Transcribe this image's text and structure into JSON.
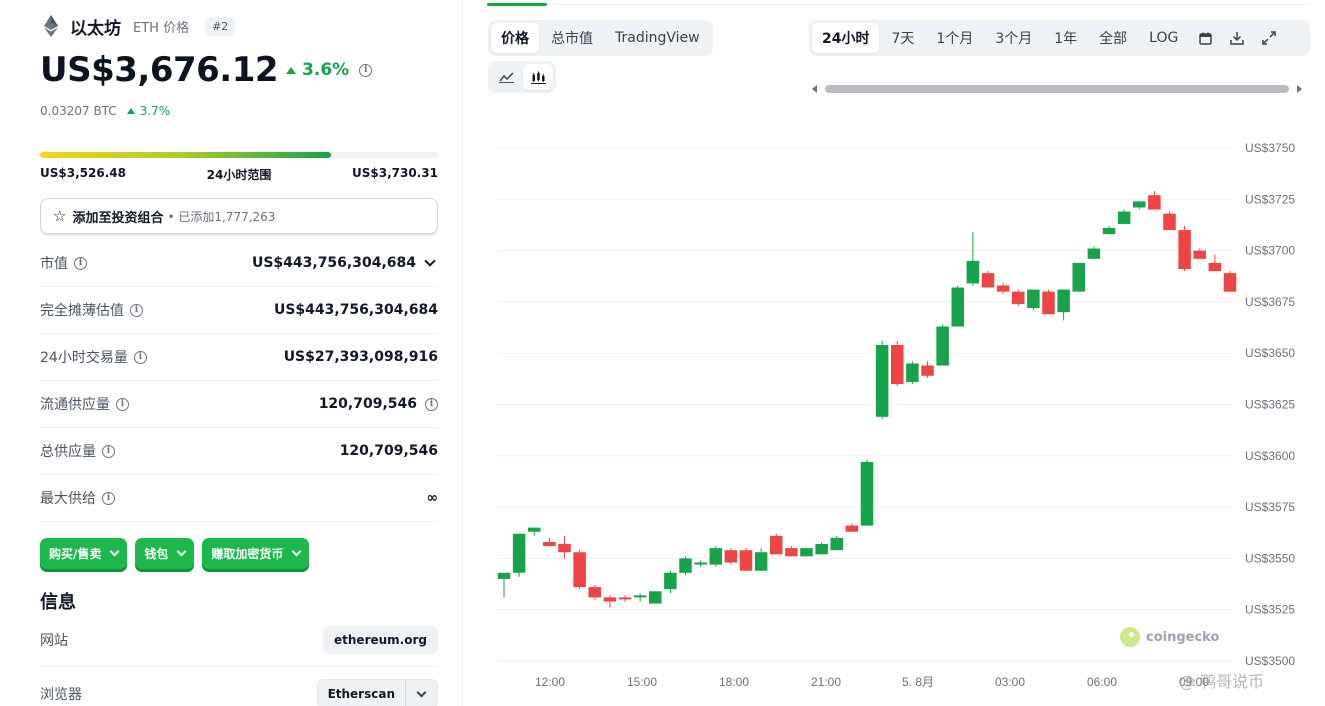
{
  "coin": {
    "name": "以太坊",
    "symbol_label": "ETH 价格",
    "rank": "#2",
    "price": "US$3,676.12",
    "change_24h": "3.6%",
    "btc_price": "0.03207 BTC",
    "btc_change": "3.7%"
  },
  "range": {
    "low": "US$3,526.48",
    "label": "24小时范围",
    "high": "US$3,730.31",
    "fill_fraction": 0.73
  },
  "portfolio": {
    "label": "添加至投资组合",
    "added": "• 已添加1,777,263"
  },
  "stats": [
    {
      "label": "市值",
      "value": "US$443,756,304,684"
    },
    {
      "label": "完全摊薄估值",
      "value": "US$443,756,304,684"
    },
    {
      "label": "24小时交易量",
      "value": "US$27,393,098,916"
    },
    {
      "label": "流通供应量",
      "value": "120,709,546"
    },
    {
      "label": "总供应量",
      "value": "120,709,546"
    },
    {
      "label": "最大供给",
      "value": "∞"
    }
  ],
  "actions": [
    "购买/售卖",
    "钱包",
    "赚取加密货币"
  ],
  "info": {
    "title": "信息",
    "website_label": "网站",
    "website_value": "ethereum.org",
    "explorer_label": "浏览器",
    "explorer_value": "Etherscan"
  },
  "chart_tabs": [
    "价格",
    "总市值",
    "TradingView"
  ],
  "chart_icons": [
    "line-chart-icon",
    "candlestick-icon"
  ],
  "time_ranges": [
    "24小时",
    "7天",
    "1个月",
    "3个月",
    "1年",
    "全部",
    "LOG"
  ],
  "tool_icons": [
    "calendar-icon",
    "download-icon",
    "expand-icon"
  ],
  "colors": {
    "up": "#16a34a",
    "down": "#ef4444",
    "accent": "#16a34a"
  },
  "watermark": {
    "brand": "coingecko",
    "overlay": "@ 鸭哥说币"
  },
  "chart_data": {
    "type": "candlestick",
    "y_ticks": [
      "US$3750",
      "US$3725",
      "US$3700",
      "US$3675",
      "US$3650",
      "US$3625",
      "US$3600",
      "US$3575",
      "US$3550",
      "US$3525",
      "US$3500"
    ],
    "ylim": [
      3500,
      3750
    ],
    "x_ticks": [
      "12:00",
      "15:00",
      "18:00",
      "21:00",
      "5. 8月",
      "03:00",
      "06:00",
      "09:00"
    ],
    "candles": [
      {
        "o": 3540,
        "h": 3542,
        "l": 3531,
        "c": 3543
      },
      {
        "o": 3543,
        "h": 3562,
        "l": 3541,
        "c": 3562
      },
      {
        "o": 3563,
        "h": 3565,
        "l": 3561,
        "c": 3565
      },
      {
        "o": 3558,
        "h": 3560,
        "l": 3556,
        "c": 3556
      },
      {
        "o": 3557,
        "h": 3561,
        "l": 3550,
        "c": 3553
      },
      {
        "o": 3553,
        "h": 3554,
        "l": 3535,
        "c": 3536
      },
      {
        "o": 3536,
        "h": 3537,
        "l": 3530,
        "c": 3531
      },
      {
        "o": 3531,
        "h": 3532,
        "l": 3526,
        "c": 3529
      },
      {
        "o": 3531,
        "h": 3532,
        "l": 3529,
        "c": 3530
      },
      {
        "o": 3531,
        "h": 3533,
        "l": 3529,
        "c": 3532
      },
      {
        "o": 3528,
        "h": 3533,
        "l": 3528,
        "c": 3534
      },
      {
        "o": 3535,
        "h": 3544,
        "l": 3533,
        "c": 3543
      },
      {
        "o": 3543,
        "h": 3551,
        "l": 3542,
        "c": 3550
      },
      {
        "o": 3547,
        "h": 3549,
        "l": 3546,
        "c": 3548
      },
      {
        "o": 3547,
        "h": 3556,
        "l": 3546,
        "c": 3555
      },
      {
        "o": 3554,
        "h": 3555,
        "l": 3547,
        "c": 3548
      },
      {
        "o": 3554,
        "h": 3555,
        "l": 3544,
        "c": 3544
      },
      {
        "o": 3544,
        "h": 3555,
        "l": 3544,
        "c": 3553
      },
      {
        "o": 3561,
        "h": 3562,
        "l": 3552,
        "c": 3552
      },
      {
        "o": 3555,
        "h": 3556,
        "l": 3551,
        "c": 3551
      },
      {
        "o": 3551,
        "h": 3555,
        "l": 3551,
        "c": 3555
      },
      {
        "o": 3552,
        "h": 3558,
        "l": 3552,
        "c": 3557
      },
      {
        "o": 3554,
        "h": 3561,
        "l": 3554,
        "c": 3560
      },
      {
        "o": 3566,
        "h": 3567,
        "l": 3563,
        "c": 3563
      },
      {
        "o": 3566,
        "h": 3598,
        "l": 3566,
        "c": 3597
      },
      {
        "o": 3619,
        "h": 3656,
        "l": 3618,
        "c": 3654
      },
      {
        "o": 3654,
        "h": 3656,
        "l": 3634,
        "c": 3635
      },
      {
        "o": 3636,
        "h": 3646,
        "l": 3635,
        "c": 3645
      },
      {
        "o": 3644,
        "h": 3646,
        "l": 3638,
        "c": 3639
      },
      {
        "o": 3644,
        "h": 3664,
        "l": 3644,
        "c": 3663
      },
      {
        "o": 3663,
        "h": 3683,
        "l": 3663,
        "c": 3682
      },
      {
        "o": 3684,
        "h": 3709,
        "l": 3683,
        "c": 3695
      },
      {
        "o": 3689,
        "h": 3690,
        "l": 3682,
        "c": 3682
      },
      {
        "o": 3683,
        "h": 3684,
        "l": 3679,
        "c": 3680
      },
      {
        "o": 3680,
        "h": 3681,
        "l": 3673,
        "c": 3674
      },
      {
        "o": 3672,
        "h": 3681,
        "l": 3671,
        "c": 3681
      },
      {
        "o": 3680,
        "h": 3681,
        "l": 3669,
        "c": 3669
      },
      {
        "o": 3670,
        "h": 3681,
        "l": 3666,
        "c": 3681
      },
      {
        "o": 3680,
        "h": 3694,
        "l": 3680,
        "c": 3694
      },
      {
        "o": 3696,
        "h": 3702,
        "l": 3696,
        "c": 3701
      },
      {
        "o": 3708,
        "h": 3712,
        "l": 3708,
        "c": 3711
      },
      {
        "o": 3713,
        "h": 3720,
        "l": 3713,
        "c": 3719
      },
      {
        "o": 3721,
        "h": 3724,
        "l": 3720,
        "c": 3724
      },
      {
        "o": 3727,
        "h": 3729,
        "l": 3720,
        "c": 3720
      },
      {
        "o": 3718,
        "h": 3719,
        "l": 3710,
        "c": 3710
      },
      {
        "o": 3710,
        "h": 3712,
        "l": 3690,
        "c": 3691
      },
      {
        "o": 3700,
        "h": 3701,
        "l": 3696,
        "c": 3696
      },
      {
        "o": 3694,
        "h": 3698,
        "l": 3690,
        "c": 3690
      },
      {
        "o": 3689,
        "h": 3690,
        "l": 3680,
        "c": 3680
      }
    ]
  }
}
